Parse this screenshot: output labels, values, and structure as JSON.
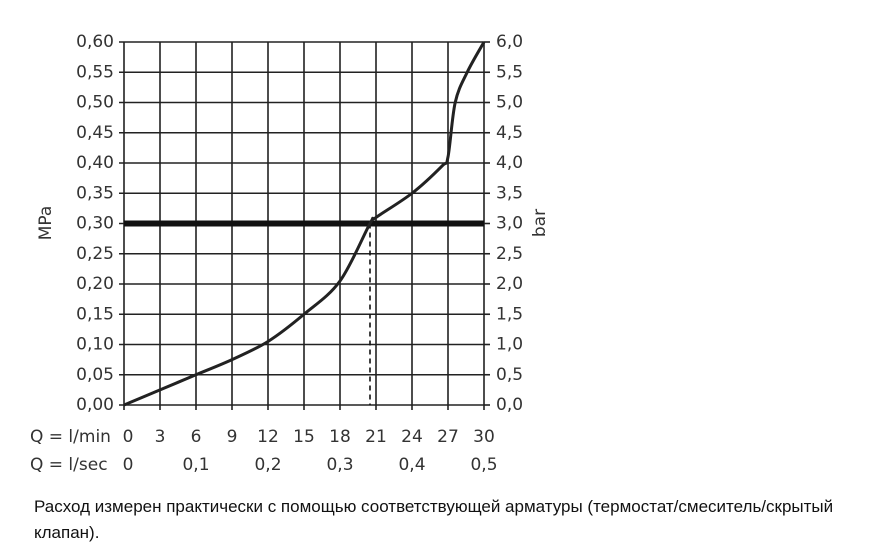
{
  "chart_data": {
    "type": "line",
    "y_label": "MPa",
    "y2_label": "bar",
    "x_label": "Q = l/min",
    "x2_label": "Q = l/sec",
    "x": [
      0,
      3,
      6,
      9,
      12,
      15,
      18,
      20.5,
      21,
      24,
      26.5,
      27,
      27.6,
      28.6,
      30
    ],
    "values": [
      0,
      0.025,
      0.05,
      0.075,
      0.105,
      0.15,
      0.205,
      0.3,
      0.31,
      0.35,
      0.395,
      0.41,
      0.5,
      0.55,
      0.6
    ],
    "color": "#222222",
    "xlim": [
      0,
      30
    ],
    "xticks": [
      0,
      3,
      6,
      9,
      12,
      15,
      18,
      21,
      24,
      27,
      30
    ],
    "x2lim": [
      0,
      0.5
    ],
    "x2ticks": [
      0,
      {
        "value": 0.1,
        "label": "0,1"
      },
      {
        "value": 0.2,
        "label": "0,2"
      },
      {
        "value": 0.3,
        "label": "0,3"
      },
      {
        "value": 0.4,
        "label": "0,4"
      },
      {
        "value": 0.5,
        "label": "0,5"
      }
    ],
    "ylim": [
      0,
      0.6
    ],
    "yticks": [
      {
        "value": 0,
        "label": "0,00"
      },
      {
        "value": 0.05,
        "label": "0,05"
      },
      {
        "value": 0.1,
        "label": "0,10"
      },
      {
        "value": 0.15,
        "label": "0,15"
      },
      {
        "value": 0.2,
        "label": "0,20"
      },
      {
        "value": 0.25,
        "label": "0,25"
      },
      {
        "value": 0.3,
        "label": "0,30"
      },
      {
        "value": 0.35,
        "label": "0,35"
      },
      {
        "value": 0.4,
        "label": "0,40"
      },
      {
        "value": 0.45,
        "label": "0,45"
      },
      {
        "value": 0.5,
        "label": "0,50"
      },
      {
        "value": 0.55,
        "label": "0,55"
      },
      {
        "value": 0.6,
        "label": "0,60"
      }
    ],
    "y2lim": [
      0,
      6
    ],
    "y2ticks": [
      {
        "value": 0,
        "label": "0,0"
      },
      {
        "value": 0.5,
        "label": "0,5"
      },
      {
        "value": 1,
        "label": "1,0"
      },
      {
        "value": 1.5,
        "label": "1,5"
      },
      {
        "value": 2,
        "label": "2,0"
      },
      {
        "value": 2.5,
        "label": "2,5"
      },
      {
        "value": 3,
        "label": "3,0"
      },
      {
        "value": 3.5,
        "label": "3,5"
      },
      {
        "value": 4,
        "label": "4,0"
      },
      {
        "value": 4.5,
        "label": "4,5"
      },
      {
        "value": 5,
        "label": "5,0"
      },
      {
        "value": 5.5,
        "label": "5,5"
      },
      {
        "value": 6,
        "label": "6,0"
      }
    ],
    "reference_y": 0.3,
    "reference_x": 20.5,
    "grid": true,
    "caption": "Расход измерен практически с помощью соответствующей арматуры (термостат/смеситель/скрытый клапан)."
  }
}
